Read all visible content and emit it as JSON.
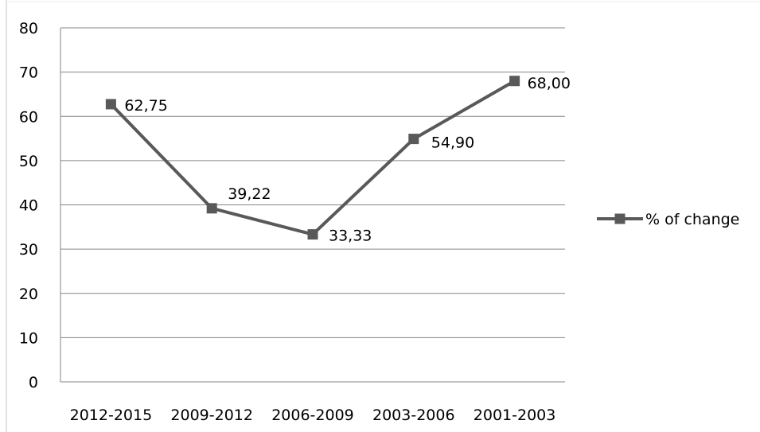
{
  "chart_data": {
    "type": "line",
    "title": "",
    "xlabel": "",
    "ylabel": "",
    "categories": [
      "2012-2015",
      "2009-2012",
      "2006-2009",
      "2003-2006",
      "2001-2003"
    ],
    "series": [
      {
        "name": "% of change",
        "values": [
          62.75,
          39.22,
          33.33,
          54.9,
          68.0
        ],
        "labels": [
          "62,75",
          "39,22",
          "33,33",
          "54,90",
          "68,00"
        ],
        "color": "#595959",
        "marker": "square"
      }
    ],
    "ylim": [
      0,
      80
    ],
    "yticks": [
      0,
      10,
      20,
      30,
      40,
      50,
      60,
      70,
      80
    ],
    "grid": true,
    "legend": "right",
    "colors": {
      "line": "#595959",
      "grid": "#868686",
      "border": "#d9d9d9",
      "text": "#000000"
    }
  }
}
